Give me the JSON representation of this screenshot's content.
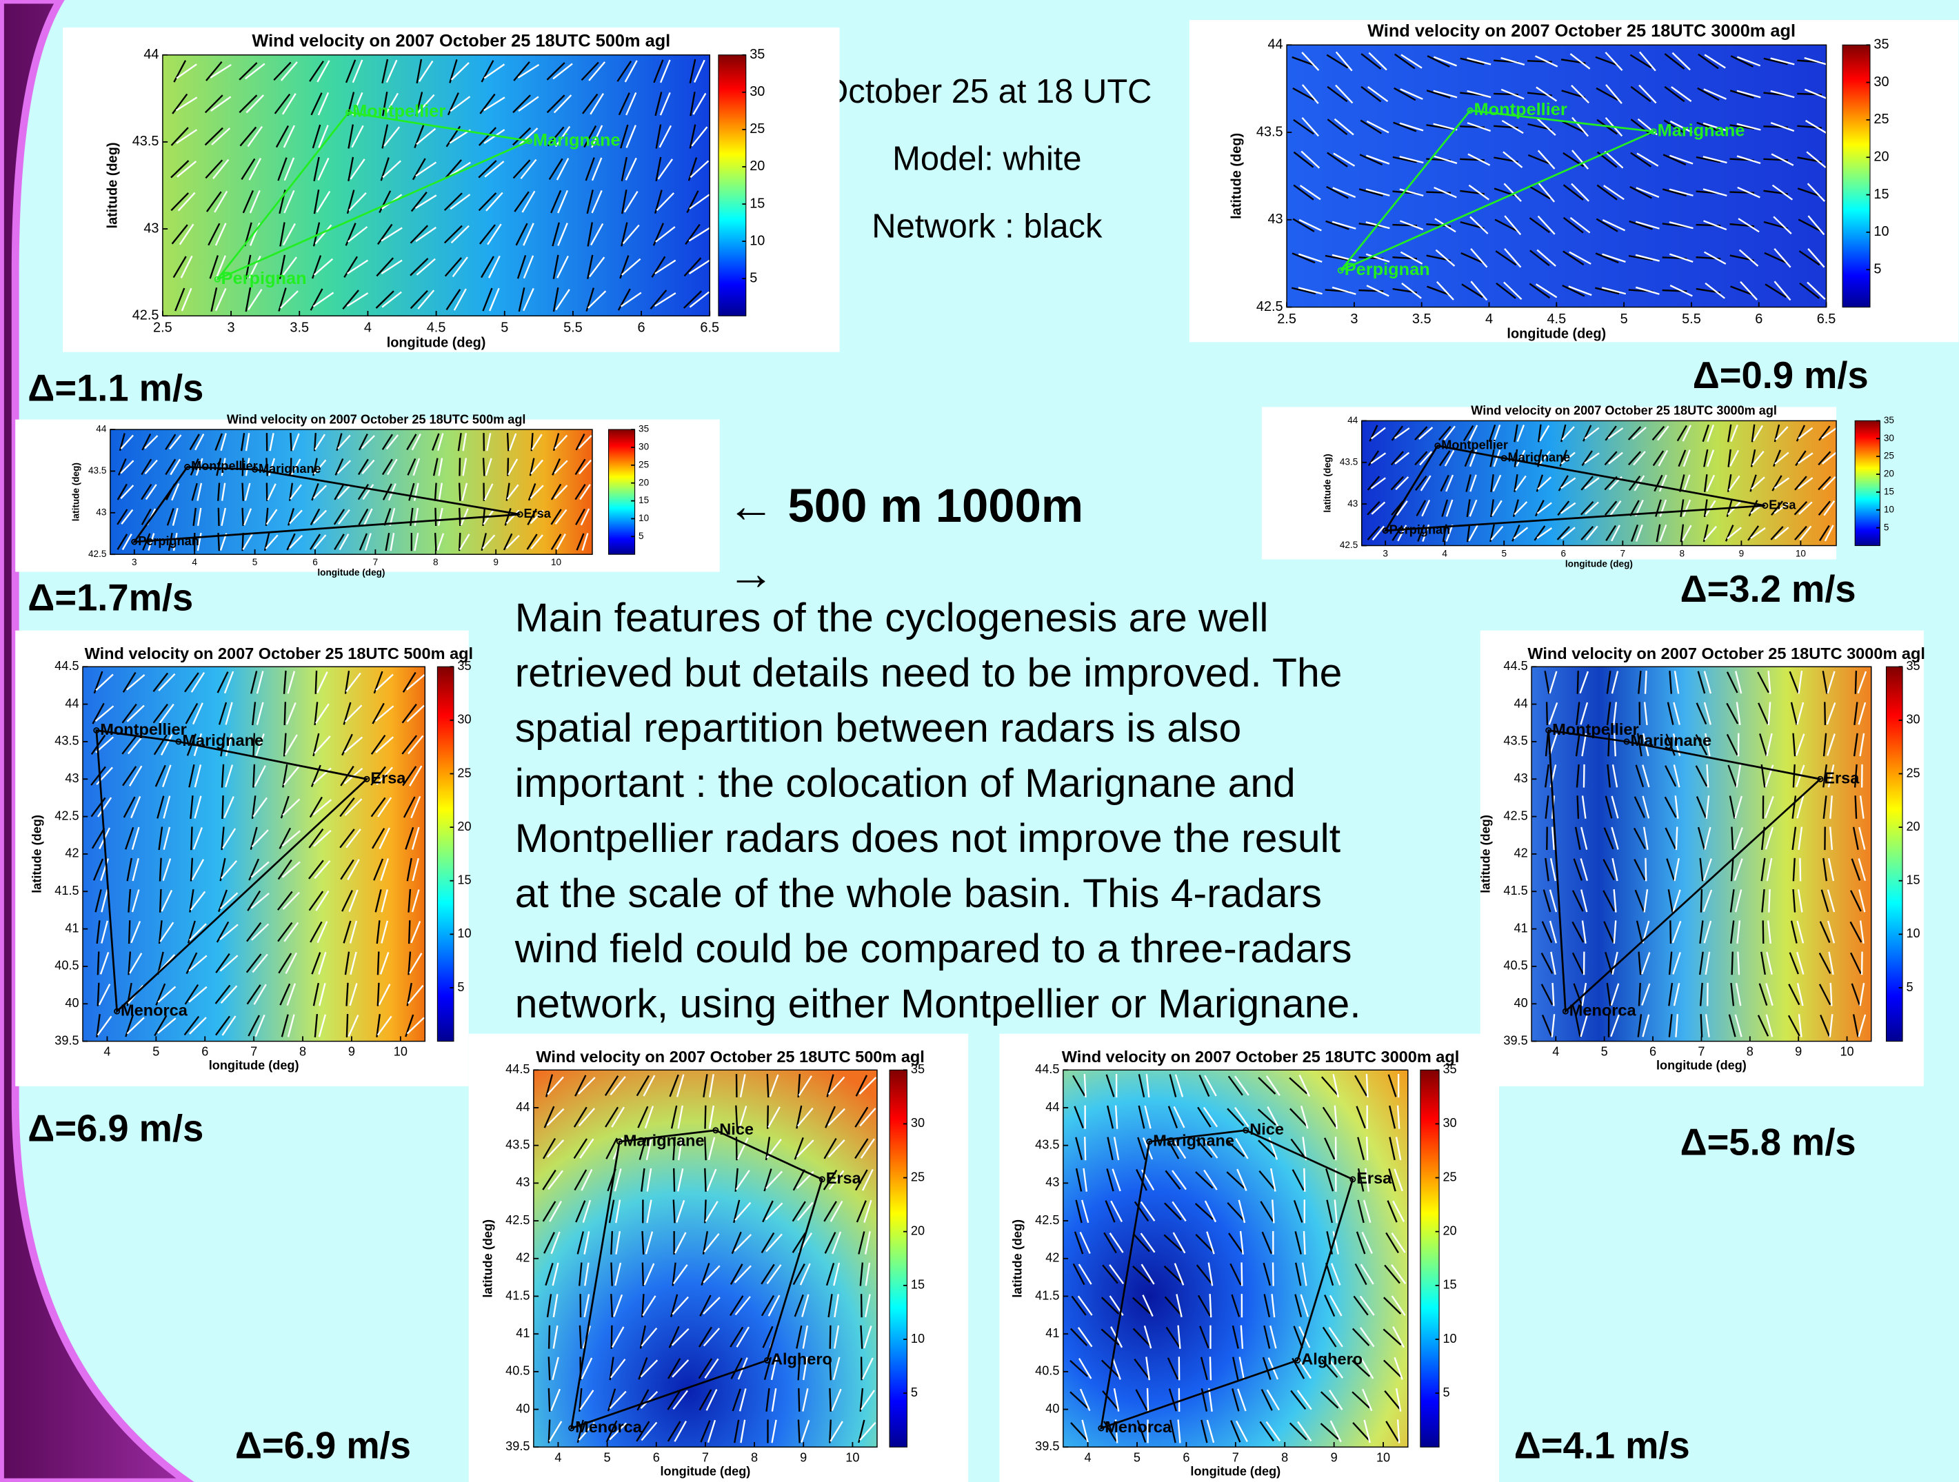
{
  "header": {
    "lines": [
      "October 25 at 18 UTC",
      "Model: white",
      "Network : black"
    ]
  },
  "direction": {
    "lines": [
      "← 500 m   1000m",
      "→"
    ]
  },
  "paragraph": {
    "lines": [
      "Main features of the cyclogenesis are well",
      "retrieved but details need to be improved. The",
      "spatial repartition between radars is also",
      "important : the colocation of Marignane and",
      "Montpellier radars does not improve the result",
      "at the scale of the whole basin. This 4-radars",
      "wind field could be compared to a three-radars",
      "network, using either Montpellier or Marignane."
    ]
  },
  "deltas": [
    "Δ=1.1 m/s",
    "Δ=0.9 m/s",
    "Δ=1.7m/s",
    "Δ=3.2 m/s",
    "Δ=6.9 m/s",
    "Δ=5.8 m/s",
    "Δ=6.9 m/s",
    "Δ=4.1 m/s"
  ],
  "panels": [
    {
      "title": "Wind velocity on 2007 October 25 18UTC 500m agl",
      "xlabel": "longitude (deg)",
      "ylabel": "latitude (deg)",
      "xlim": [
        2.5,
        6.5
      ],
      "ylim": [
        42.5,
        44
      ],
      "xticks": [
        2.5,
        3,
        3.5,
        4,
        4.5,
        5,
        5.5,
        6,
        6.5
      ],
      "yticks": [
        42.5,
        43,
        43.5,
        44
      ],
      "clim": [
        0,
        35
      ],
      "cticks": [
        5,
        10,
        15,
        20,
        25,
        30,
        35
      ],
      "stations": [
        "Montpellier",
        "Marignane",
        "Perpignan"
      ]
    },
    {
      "title": "Wind velocity on 2007 October 25 18UTC 3000m agl",
      "xlabel": "longitude (deg)",
      "ylabel": "latitude (deg)",
      "xlim": [
        2.5,
        6.5
      ],
      "ylim": [
        42.5,
        44
      ],
      "xticks": [
        2.5,
        3,
        3.5,
        4,
        4.5,
        5,
        5.5,
        6,
        6.5
      ],
      "yticks": [
        42.5,
        43,
        43.5,
        44
      ],
      "clim": [
        0,
        35
      ],
      "cticks": [
        5,
        10,
        15,
        20,
        25,
        30,
        35
      ],
      "stations": [
        "Montpellier",
        "Marignane",
        "Perpignan"
      ]
    },
    {
      "title": "Wind velocity on 2007 October 25 18UTC 500m agl",
      "xlabel": "longitude (deg)",
      "ylabel": "latitude (deg)",
      "xlim": [
        2.6,
        10.6
      ],
      "ylim": [
        42.5,
        44
      ],
      "xticks": [
        3,
        4,
        5,
        6,
        7,
        8,
        9,
        10
      ],
      "yticks": [
        42.5,
        43,
        43.5,
        44
      ],
      "clim": [
        0,
        35
      ],
      "cticks": [
        5,
        10,
        15,
        20,
        25,
        30,
        35
      ],
      "stations": [
        "Montpellier",
        "Marignane",
        "Ersa",
        "Perpignan"
      ]
    },
    {
      "title": "Wind velocity on 2007 October 25 18UTC 3000m agl",
      "xlabel": "longitude (deg)",
      "ylabel": "latitude (deg)",
      "xlim": [
        2.6,
        10.6
      ],
      "ylim": [
        42.5,
        44
      ],
      "xticks": [
        3,
        4,
        5,
        6,
        7,
        8,
        9,
        10
      ],
      "yticks": [
        42.5,
        43,
        43.5,
        44
      ],
      "clim": [
        0,
        35
      ],
      "cticks": [
        5,
        10,
        15,
        20,
        25,
        30,
        35
      ],
      "stations": [
        "Montpellier",
        "Marignane",
        "Ersa",
        "Perpignan"
      ]
    },
    {
      "title": "Wind velocity on 2007 October 25 18UTC 500m agl",
      "xlabel": "longitude (deg)",
      "ylabel": "latitude (deg)",
      "xlim": [
        3.5,
        10.5
      ],
      "ylim": [
        39.5,
        44.5
      ],
      "xticks": [
        4,
        5,
        6,
        7,
        8,
        9,
        10
      ],
      "yticks": [
        39.5,
        40,
        40.5,
        41,
        41.5,
        42,
        42.5,
        43,
        43.5,
        44,
        44.5
      ],
      "clim": [
        0,
        35
      ],
      "cticks": [
        5,
        10,
        15,
        20,
        25,
        30,
        35
      ],
      "stations": [
        "Montpellier",
        "Marignane",
        "Ersa",
        "Menorca"
      ]
    },
    {
      "title": "Wind velocity on 2007 October 25 18UTC 3000m agl",
      "xlabel": "longitude (deg)",
      "ylabel": "latitude (deg)",
      "xlim": [
        3.5,
        10.5
      ],
      "ylim": [
        39.5,
        44.5
      ],
      "xticks": [
        4,
        5,
        6,
        7,
        8,
        9,
        10
      ],
      "yticks": [
        39.5,
        40,
        40.5,
        41,
        41.5,
        42,
        42.5,
        43,
        43.5,
        44,
        44.5
      ],
      "clim": [
        0,
        35
      ],
      "cticks": [
        5,
        10,
        15,
        20,
        25,
        30,
        35
      ],
      "stations": [
        "Montpellier",
        "Marignane",
        "Ersa",
        "Menorca"
      ]
    },
    {
      "title": "Wind velocity on 2007 October 25 18UTC 500m agl",
      "xlabel": "longitude (deg)",
      "ylabel": "latitude (deg)",
      "xlim": [
        3.5,
        10.5
      ],
      "ylim": [
        39.5,
        44.5
      ],
      "xticks": [
        4,
        5,
        6,
        7,
        8,
        9,
        10
      ],
      "yticks": [
        39.5,
        40,
        40.5,
        41,
        41.5,
        42,
        42.5,
        43,
        43.5,
        44,
        44.5
      ],
      "clim": [
        0,
        35
      ],
      "cticks": [
        5,
        10,
        15,
        20,
        25,
        30,
        35
      ],
      "stations": [
        "Marignane",
        "Nice",
        "Ersa",
        "Alghero",
        "Menorca"
      ]
    },
    {
      "title": "Wind velocity on 2007 October 25 18UTC 3000m agl",
      "xlabel": "longitude (deg)",
      "ylabel": "latitude (deg)",
      "xlim": [
        3.5,
        10.5
      ],
      "ylim": [
        39.5,
        44.5
      ],
      "xticks": [
        4,
        5,
        6,
        7,
        8,
        9,
        10
      ],
      "yticks": [
        39.5,
        40,
        40.5,
        41,
        41.5,
        42,
        42.5,
        43,
        43.5,
        44,
        44.5
      ],
      "clim": [
        0,
        35
      ],
      "cticks": [
        5,
        10,
        15,
        20,
        25,
        30,
        35
      ],
      "stations": [
        "Marignane",
        "Nice",
        "Ersa",
        "Alghero",
        "Menorca"
      ]
    }
  ]
}
